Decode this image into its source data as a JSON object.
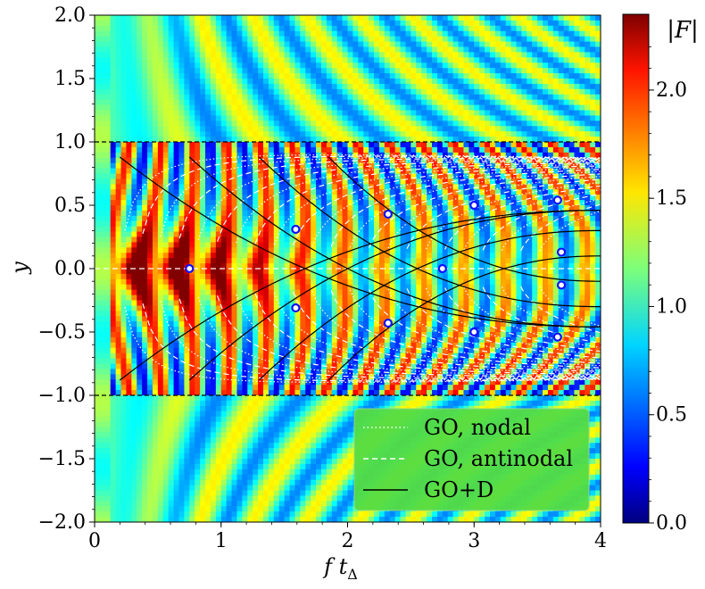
{
  "chart_data": {
    "type": "heatmap",
    "title": "",
    "xlabel": "f t",
    "xlabel_sub": "Δ",
    "ylabel": "y",
    "xlim": [
      0,
      4
    ],
    "ylim": [
      -2,
      2
    ],
    "xticks": [
      0,
      1,
      2,
      3,
      4
    ],
    "yticks": [
      2.0,
      1.5,
      1.0,
      0.5,
      0.0,
      -0.5,
      -1.0,
      -1.5,
      -2.0
    ],
    "xtick_labels": [
      "0",
      "1",
      "2",
      "3",
      "4"
    ],
    "ytick_labels": [
      "2.0",
      "1.5",
      "1.0",
      "0.5",
      "0.0",
      "−0.5",
      "−1.0",
      "−1.5",
      "−2.0"
    ],
    "boundary_lines_y": [
      1.0,
      -1.0
    ],
    "colorbar": {
      "label": "|F|",
      "range": [
        0,
        2.35
      ],
      "ticks": [
        0.0,
        0.5,
        1.0,
        1.5,
        2.0
      ],
      "tick_labels": [
        "0.0",
        "0.5",
        "1.0",
        "1.5",
        "2.0"
      ],
      "colormap": "jet"
    },
    "legend": {
      "placement": "lower-right",
      "entries": [
        {
          "label": "GO, nodal",
          "style": "dotted",
          "color": "#ffffff"
        },
        {
          "label": "GO, antinodal",
          "style": "dashed",
          "color": "#ffffff"
        },
        {
          "label": "GO+D",
          "style": "solid",
          "color": "#000000"
        }
      ]
    },
    "marked_points": [
      {
        "x": 0.75,
        "y": 0.0
      },
      {
        "x": 1.59,
        "y": 0.31
      },
      {
        "x": 1.59,
        "y": -0.31
      },
      {
        "x": 2.32,
        "y": 0.43
      },
      {
        "x": 2.32,
        "y": -0.43
      },
      {
        "x": 2.75,
        "y": 0.0
      },
      {
        "x": 3.0,
        "y": 0.5
      },
      {
        "x": 3.0,
        "y": -0.5
      },
      {
        "x": 3.66,
        "y": 0.54
      },
      {
        "x": 3.66,
        "y": -0.54
      },
      {
        "x": 3.69,
        "y": 0.13
      },
      {
        "x": 3.69,
        "y": -0.13
      }
    ],
    "go_d_curves": [
      {
        "x0": 0.2,
        "y0": 0.88,
        "x1": 4.0,
        "y1": -0.46
      },
      {
        "x0": 0.2,
        "y0": -0.88,
        "x1": 4.0,
        "y1": 0.46
      },
      {
        "x0": 0.75,
        "y0": 0.88,
        "x1": 4.0,
        "y1": -0.46
      },
      {
        "x0": 0.75,
        "y0": -0.88,
        "x1": 4.0,
        "y1": 0.46
      },
      {
        "x0": 1.3,
        "y0": -0.88,
        "x1": 4.0,
        "y1": 0.3
      },
      {
        "x0": 1.3,
        "y0": 0.88,
        "x1": 4.0,
        "y1": -0.3
      },
      {
        "x0": 1.85,
        "y0": -0.88,
        "x1": 4.0,
        "y1": 0.1
      },
      {
        "x0": 1.85,
        "y0": 0.88,
        "x1": 4.0,
        "y1": -0.1
      }
    ]
  }
}
